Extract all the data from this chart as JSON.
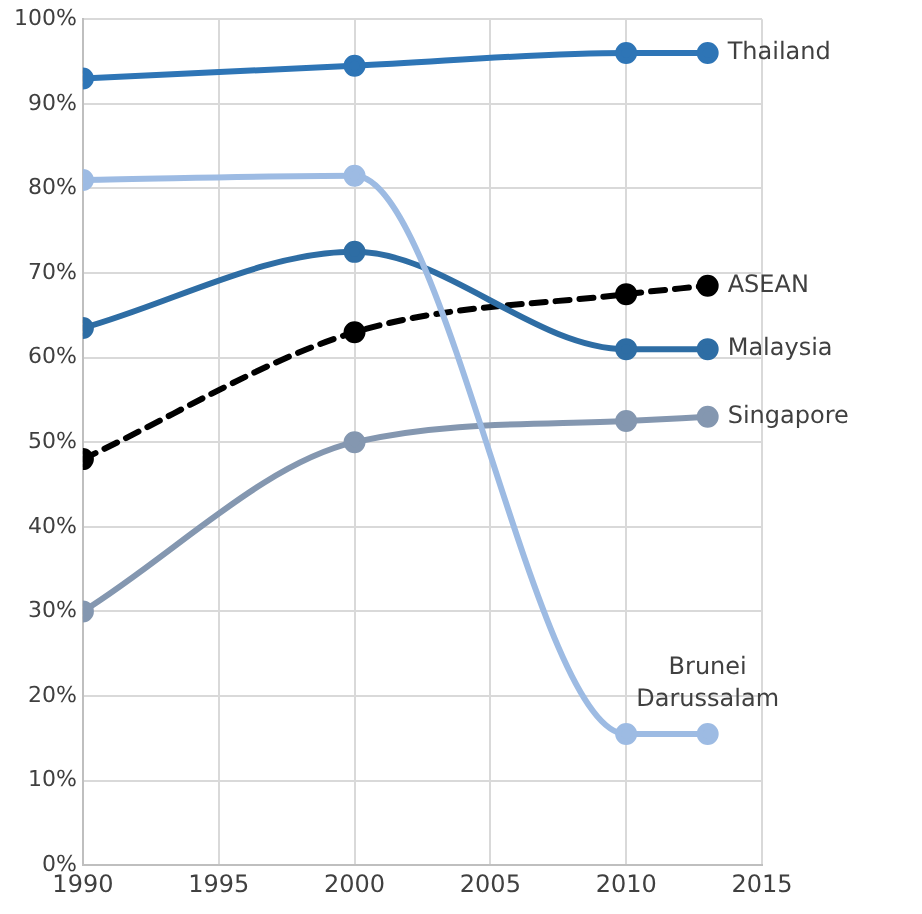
{
  "chart_data": {
    "type": "line",
    "x": [
      1990,
      2000,
      2010,
      2013
    ],
    "series": [
      {
        "name": "Thailand",
        "color": "#2e75b6",
        "values": [
          93,
          94.5,
          96,
          96
        ]
      },
      {
        "name": "Brunei Darussalam",
        "color": "#9dbbe3",
        "values": [
          81,
          81.5,
          15.5,
          15.5
        ]
      },
      {
        "name": "Malaysia",
        "color": "#2e6da4",
        "values": [
          63.5,
          72.5,
          61,
          61
        ]
      },
      {
        "name": "ASEAN",
        "color": "#000000",
        "line_style": "dashed",
        "values": [
          48,
          63,
          67.5,
          68.5
        ]
      },
      {
        "name": "Singapore",
        "color": "#8497b0",
        "values": [
          30,
          50,
          52.5,
          53
        ]
      }
    ],
    "xlim": [
      1990,
      2015
    ],
    "xticks": [
      1990,
      1995,
      2000,
      2005,
      2010,
      2015
    ],
    "ylim": [
      0,
      100
    ],
    "yticks": [
      {
        "value": 0,
        "label": "0%"
      },
      {
        "value": 10,
        "label": "10%"
      },
      {
        "value": 20,
        "label": "20%"
      },
      {
        "value": 30,
        "label": "30%"
      },
      {
        "value": 40,
        "label": "40%"
      },
      {
        "value": 50,
        "label": "50%"
      },
      {
        "value": 60,
        "label": "60%"
      },
      {
        "value": 70,
        "label": "70%"
      },
      {
        "value": 80,
        "label": "80%"
      },
      {
        "value": 90,
        "label": "90%"
      },
      {
        "value": 100,
        "label": "100%"
      }
    ],
    "grid": true,
    "legend": false,
    "marker": "circle",
    "line_style": "solid"
  }
}
